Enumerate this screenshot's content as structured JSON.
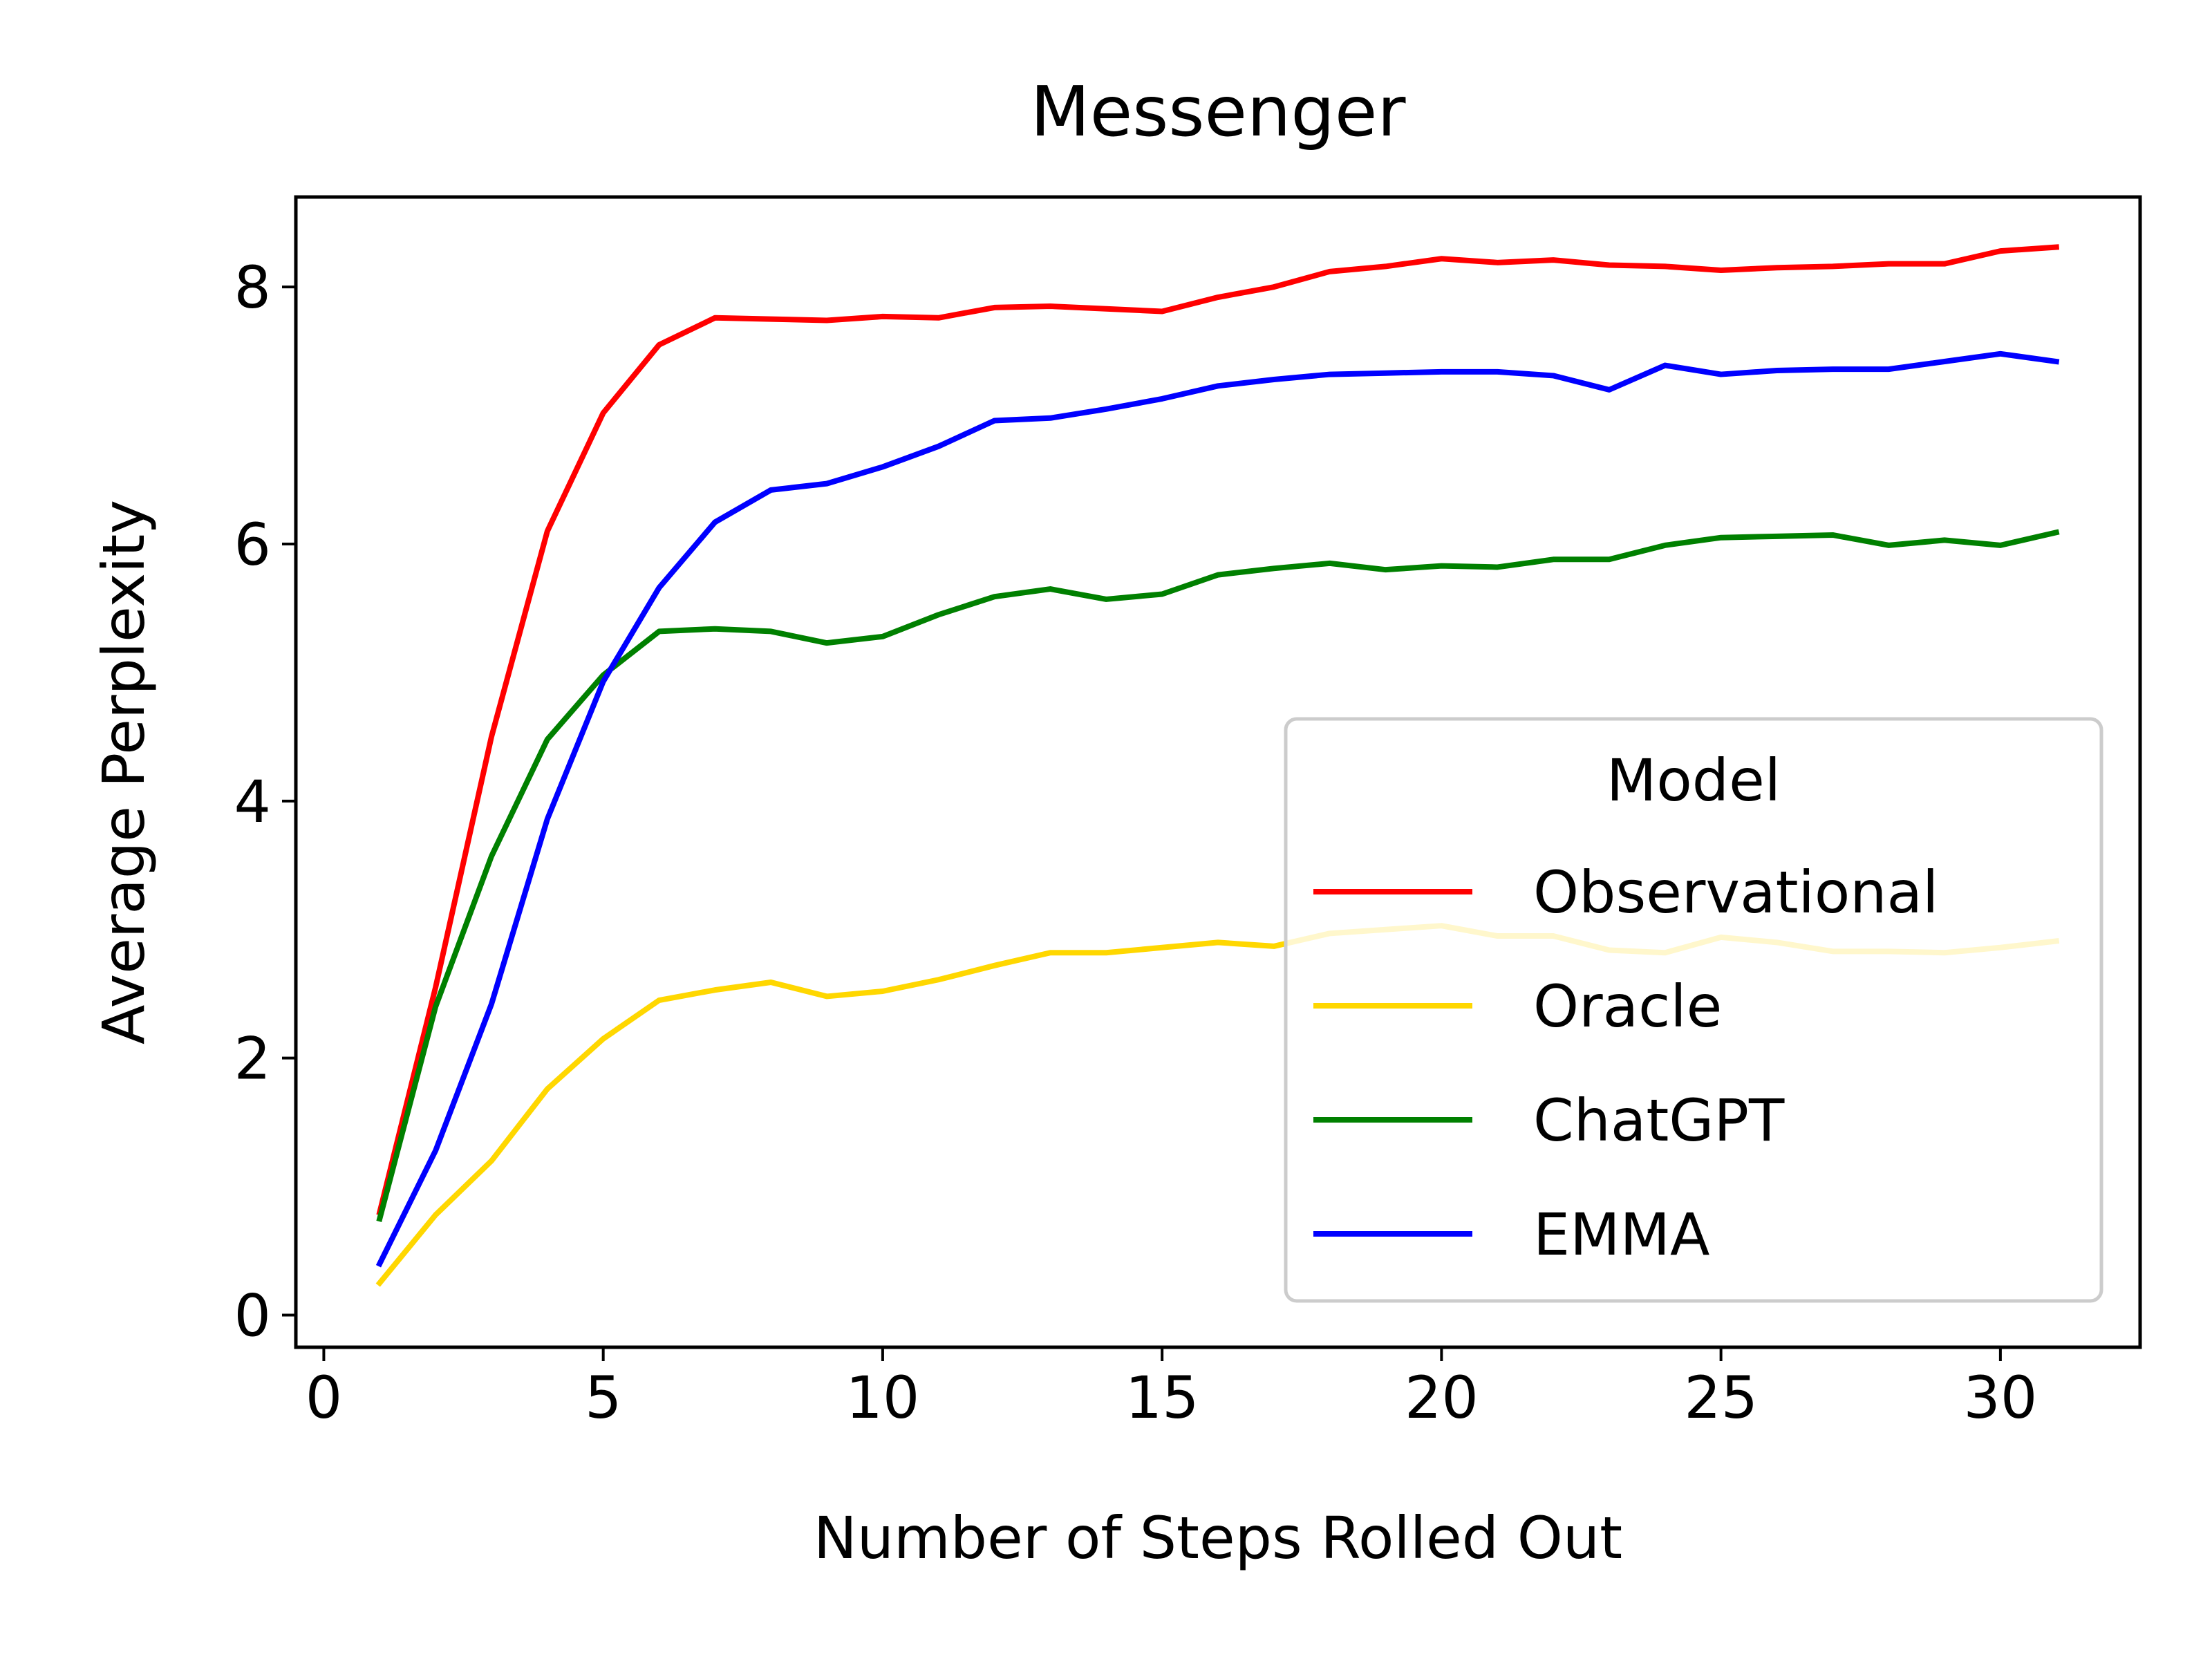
{
  "chart_data": {
    "type": "line",
    "title": "Messenger",
    "xlabel": "Number of Steps Rolled Out",
    "ylabel": "Average Perplexity",
    "xlim": [
      -0.5,
      32.5
    ],
    "ylim": [
      -0.25,
      8.7
    ],
    "xticks": [
      0,
      5,
      10,
      15,
      20,
      25,
      30
    ],
    "yticks": [
      0,
      2,
      4,
      6,
      8
    ],
    "grid": false,
    "legend": {
      "title": "Model",
      "placement": "lower-right"
    },
    "x": [
      1,
      2,
      3,
      4,
      5,
      6,
      7,
      8,
      9,
      10,
      11,
      12,
      13,
      14,
      15,
      16,
      17,
      18,
      19,
      20,
      21,
      22,
      23,
      24,
      25,
      26,
      27,
      28,
      29,
      30,
      31
    ],
    "series": [
      {
        "name": "Observational",
        "color": "#ff0000",
        "values": [
          0.8,
          2.55,
          4.5,
          6.1,
          7.02,
          7.55,
          7.76,
          7.75,
          7.74,
          7.77,
          7.76,
          7.84,
          7.85,
          7.83,
          7.81,
          7.92,
          8.0,
          8.12,
          8.16,
          8.22,
          8.19,
          8.21,
          8.17,
          8.16,
          8.13,
          8.15,
          8.16,
          8.18,
          8.18,
          8.28,
          8.31
        ]
      },
      {
        "name": "Oracle",
        "color": "#ffd700",
        "values": [
          0.25,
          0.78,
          1.2,
          1.76,
          2.15,
          2.45,
          2.53,
          2.59,
          2.48,
          2.52,
          2.61,
          2.72,
          2.82,
          2.82,
          2.86,
          2.9,
          2.87,
          2.97,
          3.0,
          3.03,
          2.95,
          2.95,
          2.84,
          2.82,
          2.94,
          2.9,
          2.83,
          2.83,
          2.82,
          2.86,
          2.91
        ]
      },
      {
        "name": "ChatGPT",
        "color": "#008000",
        "values": [
          0.75,
          2.4,
          3.57,
          4.48,
          4.98,
          5.32,
          5.34,
          5.32,
          5.23,
          5.28,
          5.45,
          5.59,
          5.65,
          5.57,
          5.61,
          5.76,
          5.81,
          5.85,
          5.8,
          5.83,
          5.82,
          5.88,
          5.88,
          5.99,
          6.05,
          6.06,
          6.07,
          5.99,
          6.03,
          5.99,
          6.09
        ]
      },
      {
        "name": "EMMA",
        "color": "#0000ff",
        "values": [
          0.4,
          1.28,
          2.42,
          3.86,
          4.93,
          5.66,
          6.17,
          6.42,
          6.47,
          6.6,
          6.76,
          6.96,
          6.98,
          7.05,
          7.13,
          7.23,
          7.28,
          7.32,
          7.33,
          7.34,
          7.34,
          7.31,
          7.2,
          7.39,
          7.32,
          7.35,
          7.36,
          7.36,
          7.42,
          7.48,
          7.42
        ]
      }
    ]
  }
}
